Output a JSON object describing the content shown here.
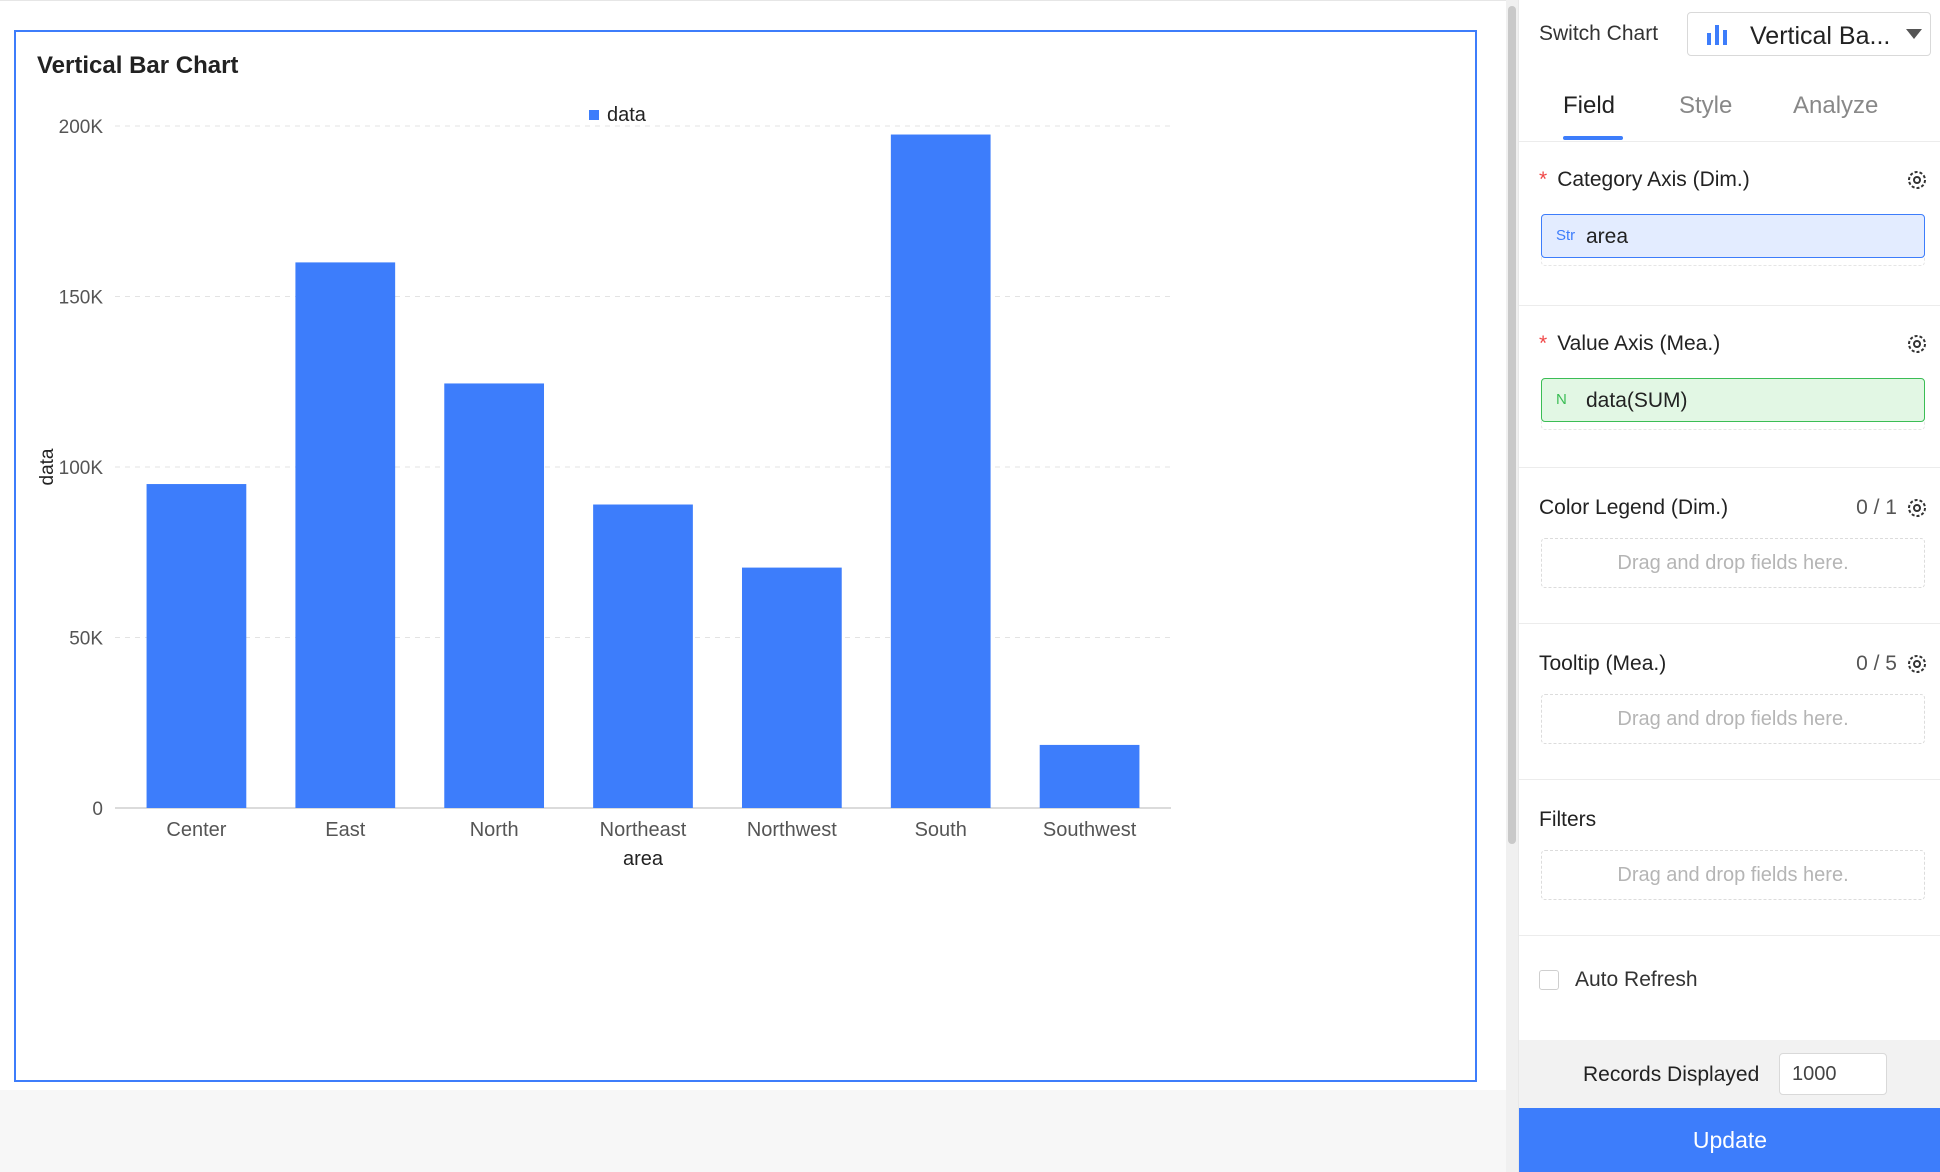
{
  "chart_data": {
    "type": "bar",
    "title": "Vertical Bar Chart",
    "categories": [
      "Center",
      "East",
      "North",
      "Northeast",
      "Northwest",
      "South",
      "Southwest"
    ],
    "series": [
      {
        "name": "data",
        "values": [
          95000,
          160000,
          124500,
          89000,
          70500,
          197500,
          18500
        ]
      }
    ],
    "xlabel": "area",
    "ylabel": "data",
    "ylim": [
      0,
      200000
    ],
    "yticks": [
      0,
      50000,
      100000,
      150000,
      200000
    ],
    "ytick_labels": [
      "0",
      "50K",
      "100K",
      "150K",
      "200K"
    ],
    "grid": true,
    "legend_position": "top-center",
    "bar_color": "#3d7dfb"
  },
  "panel": {
    "switch_label": "Switch Chart",
    "switch_value": "Vertical Ba...",
    "tabs": [
      "Field",
      "Style",
      "Analyze"
    ],
    "active_tab": "Field",
    "category_axis": {
      "label": "Category Axis (Dim.)",
      "field_type": "Str",
      "field": "area"
    },
    "value_axis": {
      "label": "Value Axis (Mea.)",
      "field_type": "N",
      "field": "data(SUM)"
    },
    "color_legend": {
      "label": "Color Legend (Dim.)",
      "count": "0 / 1",
      "placeholder": "Drag and drop fields here."
    },
    "tooltip": {
      "label": "Tooltip (Mea.)",
      "count": "0 / 5",
      "placeholder": "Drag and drop fields here."
    },
    "filters": {
      "label": "Filters",
      "placeholder": "Drag and drop fields here."
    },
    "auto_refresh_label": "Auto Refresh",
    "records_label": "Records Displayed",
    "records_value": "1000",
    "update_label": "Update"
  },
  "colors": {
    "accent": "#3d7dfb",
    "required": "#f04848",
    "measure_green": "#3bbd55"
  }
}
